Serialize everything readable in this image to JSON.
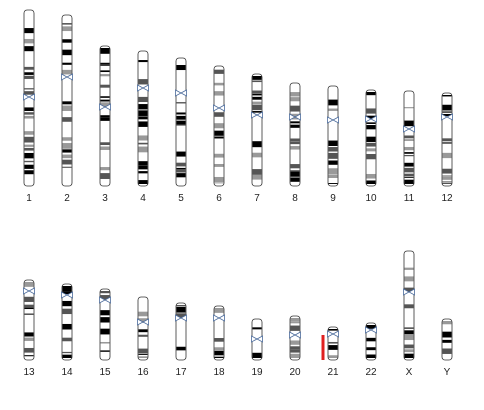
{
  "chromosomes": [
    "1",
    "2",
    "3",
    "4",
    "5",
    "6",
    "7",
    "8",
    "9",
    "10",
    "11",
    "12",
    "13",
    "14",
    "15",
    "16",
    "17",
    "18",
    "19",
    "20",
    "21",
    "22",
    "X",
    "Y"
  ]
}
